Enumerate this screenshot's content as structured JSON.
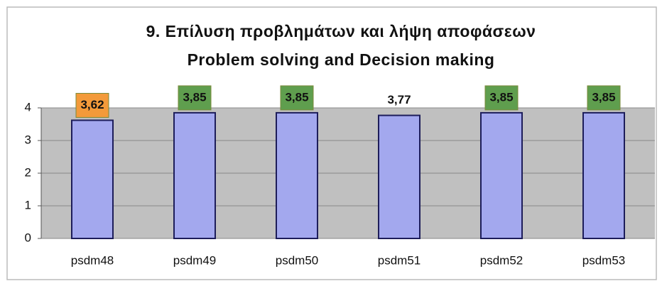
{
  "chart_data": {
    "type": "bar",
    "title": [
      "9. Επίλυση προβλημάτων και λήψη αποφάσεων",
      "Problem solving and Decision making"
    ],
    "categories": [
      "psdm48",
      "psdm49",
      "psdm50",
      "psdm51",
      "psdm52",
      "psdm53"
    ],
    "values": [
      3.62,
      3.85,
      3.85,
      3.77,
      3.85,
      3.85
    ],
    "value_labels": [
      "3,62",
      "3,85",
      "3,85",
      "3,77",
      "3,85",
      "3,85"
    ],
    "label_colors": [
      "#f39a3a",
      "#5f9e4e",
      "#5f9e4e",
      null,
      "#5f9e4e",
      "#5f9e4e"
    ],
    "color": "#a3a8ee",
    "ylim": [
      0,
      4
    ],
    "yticks": [
      0,
      1,
      2,
      3,
      4
    ],
    "grid": true
  }
}
